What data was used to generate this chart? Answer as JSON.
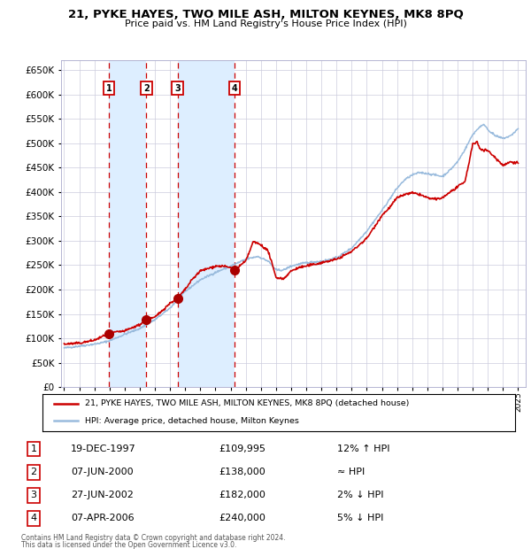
{
  "title": "21, PYKE HAYES, TWO MILE ASH, MILTON KEYNES, MK8 8PQ",
  "subtitle": "Price paid vs. HM Land Registry's House Price Index (HPI)",
  "legend_line1": "21, PYKE HAYES, TWO MILE ASH, MILTON KEYNES, MK8 8PQ (detached house)",
  "legend_line2": "HPI: Average price, detached house, Milton Keynes",
  "footer1": "Contains HM Land Registry data © Crown copyright and database right 2024.",
  "footer2": "This data is licensed under the Open Government Licence v3.0.",
  "transactions": [
    {
      "num": 1,
      "date": "19-DEC-1997",
      "price": 109995,
      "note": "12% ↑ HPI",
      "year": 1997.97
    },
    {
      "num": 2,
      "date": "07-JUN-2000",
      "price": 138000,
      "note": "≈ HPI",
      "year": 2000.44
    },
    {
      "num": 3,
      "date": "27-JUN-2002",
      "price": 182000,
      "note": "2% ↓ HPI",
      "year": 2002.49
    },
    {
      "num": 4,
      "date": "07-APR-2006",
      "price": 240000,
      "note": "5% ↓ HPI",
      "year": 2006.27
    }
  ],
  "ylim": [
    0,
    670000
  ],
  "xlim_start": 1994.8,
  "xlim_end": 2025.5,
  "background_color": "#ffffff",
  "plot_bg_color": "#ffffff",
  "grid_color": "#ccccdd",
  "red_line_color": "#cc0000",
  "blue_line_color": "#99bbdd",
  "dashed_line_color": "#cc0000",
  "shade_color": "#ddeeff",
  "marker_color": "#aa0000",
  "box_color": "#cc0000",
  "hpi_anchors": [
    [
      1995.0,
      80000
    ],
    [
      1996.0,
      84000
    ],
    [
      1997.0,
      88000
    ],
    [
      1997.5,
      91000
    ],
    [
      1998.0,
      95000
    ],
    [
      1999.0,
      108000
    ],
    [
      2000.0,
      120000
    ],
    [
      2001.0,
      138000
    ],
    [
      2002.0,
      162000
    ],
    [
      2003.0,
      196000
    ],
    [
      2004.0,
      220000
    ],
    [
      2005.0,
      235000
    ],
    [
      2006.0,
      248000
    ],
    [
      2007.0,
      262000
    ],
    [
      2007.8,
      268000
    ],
    [
      2008.5,
      258000
    ],
    [
      2009.0,
      240000
    ],
    [
      2009.5,
      240000
    ],
    [
      2010.0,
      248000
    ],
    [
      2010.5,
      252000
    ],
    [
      2011.0,
      255000
    ],
    [
      2012.0,
      258000
    ],
    [
      2013.0,
      265000
    ],
    [
      2014.0,
      285000
    ],
    [
      2015.0,
      320000
    ],
    [
      2016.0,
      362000
    ],
    [
      2016.5,
      385000
    ],
    [
      2017.0,
      408000
    ],
    [
      2017.5,
      425000
    ],
    [
      2018.0,
      435000
    ],
    [
      2018.5,
      440000
    ],
    [
      2019.0,
      438000
    ],
    [
      2019.5,
      435000
    ],
    [
      2020.0,
      432000
    ],
    [
      2020.5,
      445000
    ],
    [
      2021.0,
      462000
    ],
    [
      2021.5,
      488000
    ],
    [
      2022.0,
      518000
    ],
    [
      2022.5,
      535000
    ],
    [
      2022.8,
      538000
    ],
    [
      2023.0,
      528000
    ],
    [
      2023.5,
      515000
    ],
    [
      2024.0,
      510000
    ],
    [
      2024.5,
      515000
    ],
    [
      2025.0,
      530000
    ]
  ],
  "price_anchors": [
    [
      1995.0,
      88000
    ],
    [
      1996.0,
      90000
    ],
    [
      1997.0,
      96000
    ],
    [
      1997.97,
      109995
    ],
    [
      1998.3,
      112000
    ],
    [
      1999.0,
      115000
    ],
    [
      2000.0,
      128000
    ],
    [
      2000.44,
      138000
    ],
    [
      2001.0,
      143000
    ],
    [
      2002.0,
      172000
    ],
    [
      2002.49,
      182000
    ],
    [
      2003.0,
      200000
    ],
    [
      2003.5,
      222000
    ],
    [
      2004.0,
      238000
    ],
    [
      2005.0,
      248000
    ],
    [
      2005.5,
      248000
    ],
    [
      2006.0,
      245000
    ],
    [
      2006.27,
      240000
    ],
    [
      2007.0,
      258000
    ],
    [
      2007.5,
      298000
    ],
    [
      2008.0,
      292000
    ],
    [
      2008.5,
      278000
    ],
    [
      2009.0,
      225000
    ],
    [
      2009.5,
      222000
    ],
    [
      2010.0,
      238000
    ],
    [
      2010.5,
      245000
    ],
    [
      2011.0,
      248000
    ],
    [
      2012.0,
      255000
    ],
    [
      2013.0,
      262000
    ],
    [
      2014.0,
      278000
    ],
    [
      2015.0,
      305000
    ],
    [
      2016.0,
      352000
    ],
    [
      2016.5,
      368000
    ],
    [
      2017.0,
      388000
    ],
    [
      2017.5,
      395000
    ],
    [
      2018.0,
      398000
    ],
    [
      2018.5,
      395000
    ],
    [
      2019.0,
      388000
    ],
    [
      2019.5,
      385000
    ],
    [
      2020.0,
      388000
    ],
    [
      2020.5,
      400000
    ],
    [
      2021.0,
      410000
    ],
    [
      2021.5,
      422000
    ],
    [
      2022.0,
      498000
    ],
    [
      2022.3,
      502000
    ],
    [
      2022.5,
      488000
    ],
    [
      2023.0,
      485000
    ],
    [
      2023.5,
      470000
    ],
    [
      2024.0,
      455000
    ],
    [
      2024.5,
      462000
    ],
    [
      2025.0,
      460000
    ]
  ]
}
